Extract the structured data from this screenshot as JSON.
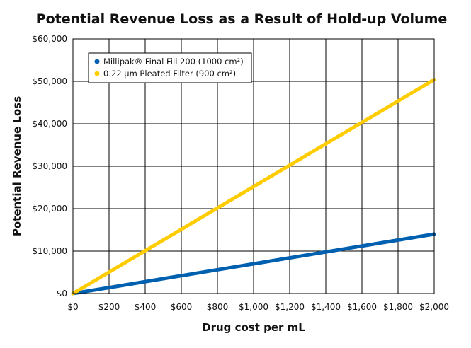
{
  "chart_data": {
    "type": "line",
    "title": "Potential Revenue Loss as a Result of Hold-up Volume",
    "xlabel": "Drug cost per mL",
    "ylabel": "Potential Revenue Loss",
    "xlim": [
      0,
      2000
    ],
    "ylim": [
      0,
      60000
    ],
    "grid": true,
    "legend_position": "top-left",
    "x_ticks": [
      0,
      200,
      400,
      600,
      800,
      1000,
      1200,
      1400,
      1600,
      1800,
      2000
    ],
    "x_tick_labels": [
      "$0",
      "$200",
      "$400",
      "$600",
      "$800",
      "$1,000",
      "$1,200",
      "$1,400",
      "$1,600",
      "$1,800",
      "$2,000"
    ],
    "y_ticks": [
      0,
      10000,
      20000,
      30000,
      40000,
      50000,
      60000
    ],
    "y_tick_labels": [
      "$0",
      "$10,000",
      "$20,000",
      "$30,000",
      "$40,000",
      "$50,000",
      "$60,000"
    ],
    "series": [
      {
        "name": "Millipak® Final Fill 200 (1000 cm²)",
        "color": "#0060b0",
        "x": [
          0,
          2000
        ],
        "y": [
          0,
          14000
        ]
      },
      {
        "name": "0.22 µm Pleated Filter (900 cm²)",
        "color": "#ffcc00",
        "x": [
          0,
          2000
        ],
        "y": [
          0,
          50400
        ]
      }
    ]
  }
}
